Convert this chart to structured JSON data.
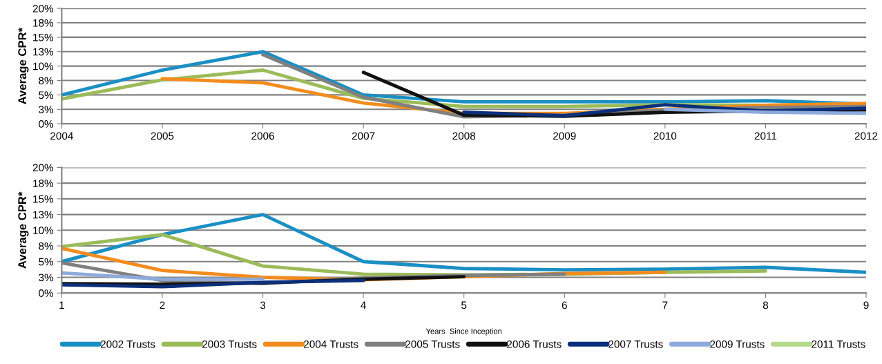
{
  "chart_data": [
    {
      "type": "line",
      "ylabel": "Average CPR*",
      "x": [
        2004,
        2005,
        2006,
        2007,
        2008,
        2009,
        2010,
        2011,
        2012
      ],
      "xlim": [
        2004,
        2012
      ],
      "xticks": [
        2004,
        2005,
        2006,
        2007,
        2008,
        2009,
        2010,
        2011,
        2012
      ],
      "ylim": [
        0,
        20
      ],
      "yticks": [
        {
          "value": 0,
          "label": "0%"
        },
        {
          "value": 2.5,
          "label": "3%"
        },
        {
          "value": 5,
          "label": "5%"
        },
        {
          "value": 7.5,
          "label": "8%"
        },
        {
          "value": 10,
          "label": "10%"
        },
        {
          "value": 12.5,
          "label": "13%"
        },
        {
          "value": 15,
          "label": "15%"
        },
        {
          "value": 17.5,
          "label": "18%"
        },
        {
          "value": 20,
          "label": "20%"
        }
      ],
      "grid": "y",
      "legend": false,
      "marker": "none",
      "line_style": "solid",
      "series": [
        {
          "color": "#1a8fc4",
          "values": [
            5.0,
            9.3,
            12.5,
            5.0,
            3.8,
            3.8,
            3.8,
            4.0,
            3.4
          ]
        },
        {
          "color": "#9bbb59",
          "values": [
            4.3,
            7.6,
            9.3,
            4.4,
            3.0,
            3.0,
            3.3,
            3.2,
            3.5
          ]
        },
        {
          "color": "#f28c1e",
          "values": [
            null,
            7.8,
            7.1,
            3.6,
            1.8,
            1.8,
            2.5,
            3.2,
            3.5
          ]
        },
        {
          "color": "#808080",
          "values": [
            null,
            null,
            12.0,
            4.6,
            1.2,
            1.5,
            2.4,
            2.8,
            3.0
          ]
        },
        {
          "color": "#111111",
          "values": [
            null,
            null,
            null,
            8.9,
            1.5,
            1.3,
            2.0,
            2.2,
            2.4
          ]
        },
        {
          "color": "#0b2f7a",
          "values": [
            null,
            null,
            null,
            null,
            2.0,
            1.4,
            3.3,
            2.2,
            2.7
          ]
        },
        {
          "color": "#8eaadb",
          "values": [
            null,
            null,
            null,
            null,
            null,
            null,
            2.5,
            2.0,
            1.8
          ]
        }
      ]
    },
    {
      "type": "line",
      "ylabel": "Average CPR*",
      "xlabel": "Years  Since Inception",
      "x": [
        1,
        2,
        3,
        4,
        5,
        6,
        7,
        8,
        9
      ],
      "xlim": [
        1,
        9
      ],
      "xticks": [
        1,
        2,
        3,
        4,
        5,
        6,
        7,
        8,
        9
      ],
      "ylim": [
        0,
        20
      ],
      "yticks": [
        {
          "value": 0,
          "label": "0%"
        },
        {
          "value": 2.5,
          "label": "3%"
        },
        {
          "value": 5,
          "label": "5%"
        },
        {
          "value": 7.5,
          "label": "8%"
        },
        {
          "value": 10,
          "label": "10%"
        },
        {
          "value": 12.5,
          "label": "13%"
        },
        {
          "value": 15,
          "label": "15%"
        },
        {
          "value": 17.5,
          "label": "18%"
        },
        {
          "value": 20,
          "label": "20%"
        }
      ],
      "grid": "y",
      "legend": "bottom",
      "marker": "none",
      "line_style": "solid",
      "series": [
        {
          "name": "2002 Trusts",
          "color": "#1a8fc4",
          "values": [
            5.0,
            9.3,
            12.5,
            5.0,
            3.9,
            3.7,
            3.8,
            4.1,
            3.3
          ]
        },
        {
          "name": "2003 Trusts",
          "color": "#9bbb59",
          "values": [
            7.4,
            9.3,
            4.3,
            3.0,
            2.9,
            3.0,
            3.3,
            3.5,
            null
          ]
        },
        {
          "name": "2004 Trusts",
          "color": "#f28c1e",
          "values": [
            7.1,
            3.6,
            2.5,
            2.1,
            2.6,
            3.1,
            3.3,
            null,
            null
          ]
        },
        {
          "name": "2005 Trusts",
          "color": "#808080",
          "values": [
            4.8,
            2.0,
            1.5,
            2.4,
            2.8,
            3.0,
            null,
            null,
            null
          ]
        },
        {
          "name": "2006 Trusts",
          "color": "#111111",
          "values": [
            1.5,
            1.4,
            1.6,
            2.2,
            2.6,
            null,
            null,
            null,
            null
          ]
        },
        {
          "name": "2007 Trusts",
          "color": "#0b2f7a",
          "values": [
            1.3,
            1.0,
            1.7,
            2.0,
            null,
            null,
            null,
            null,
            null
          ]
        },
        {
          "name": "2009 Trusts",
          "color": "#8eaadb",
          "values": [
            3.2,
            2.2,
            2.2,
            null,
            null,
            null,
            null,
            null,
            null
          ]
        },
        {
          "name": "2011 Trusts",
          "color": "#b3d98a",
          "values": [
            null,
            null,
            null,
            null,
            null,
            null,
            null,
            null,
            null
          ]
        }
      ]
    }
  ]
}
